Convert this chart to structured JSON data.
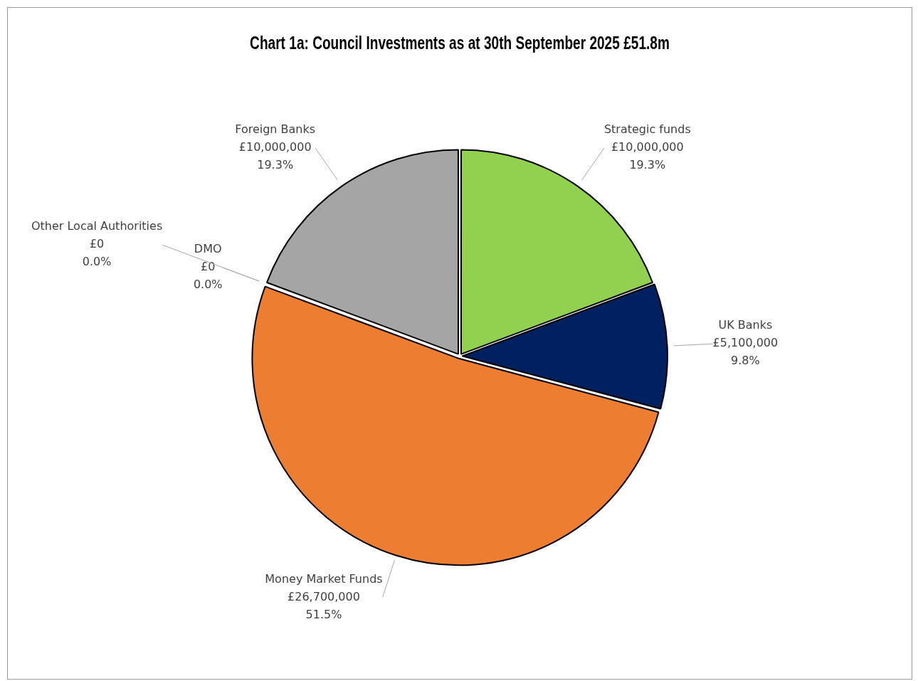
{
  "chart_data": {
    "type": "pie",
    "title": "Chart 1a: Council Investments as at 30th September 2025 £51.8m",
    "categories": [
      "Strategic funds",
      "UK Banks",
      "Money Market Funds",
      "DMO",
      "Other Local Authorities",
      "Foreign Banks"
    ],
    "values": [
      10000000,
      5100000,
      26700000,
      0,
      0,
      10000000
    ],
    "colors": [
      "#92d050",
      "#002060",
      "#ed7d31",
      "#4472c4",
      "#ffc000",
      "#a5a5a5"
    ],
    "value_labels": [
      "£10,000,000\n19.3%",
      "£5,100,000\n9.8%",
      "£26,700,000\n51.5%",
      "£0\n0.0%",
      "£0\n0.0%",
      "£10,000,000\n19.3%"
    ],
    "legend": false
  }
}
